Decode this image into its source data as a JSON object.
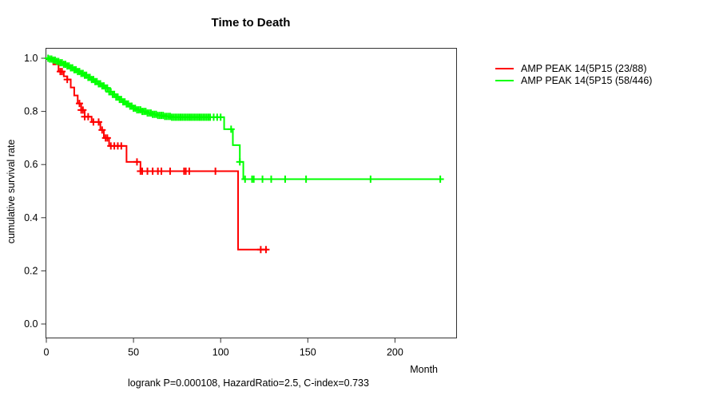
{
  "chart_data": {
    "type": "line",
    "subtype": "kaplan-meier-step",
    "title": "Time to Death",
    "xlabel": "Month",
    "ylabel": "cumulative survival rate",
    "annotation": "logrank P=0.000108, HazardRatio=2.5, C-index=0.733",
    "xlim": [
      0,
      235
    ],
    "ylim": [
      0.0,
      1.0
    ],
    "x_ticks": [
      0,
      50,
      100,
      150,
      200
    ],
    "y_ticks": [
      0.0,
      0.2,
      0.4,
      0.6,
      0.8,
      1.0
    ],
    "grid": false,
    "legend_position": "right-outside",
    "series": [
      {
        "id": "red",
        "name": "AMP PEAK 14(5P15 (23/88)",
        "color": "#ff0000",
        "end_month": 127,
        "steps": [
          [
            0,
            1.0
          ],
          [
            4,
            0.977
          ],
          [
            7,
            0.95
          ],
          [
            10,
            0.932
          ],
          [
            12,
            0.92
          ],
          [
            14,
            0.89
          ],
          [
            16,
            0.86
          ],
          [
            18,
            0.83
          ],
          [
            20,
            0.805
          ],
          [
            22,
            0.78
          ],
          [
            26,
            0.76
          ],
          [
            31,
            0.73
          ],
          [
            33,
            0.7
          ],
          [
            36,
            0.67
          ],
          [
            46,
            0.61
          ],
          [
            54,
            0.575
          ],
          [
            110,
            0.28
          ]
        ],
        "censor_months": [
          8,
          9,
          12,
          19,
          20,
          21,
          22,
          24,
          27,
          30,
          32,
          34,
          35,
          37,
          39,
          41,
          43,
          52,
          54,
          55,
          58,
          61,
          64,
          66,
          71,
          79,
          80,
          82,
          97,
          123,
          126
        ]
      },
      {
        "id": "green",
        "name": "AMP PEAK 14(5P15 (58/446)",
        "color": "#00ff00",
        "end_month": 226,
        "steps": [
          [
            0,
            1.0
          ],
          [
            2,
            0.997
          ],
          [
            4,
            0.993
          ],
          [
            6,
            0.988
          ],
          [
            8,
            0.983
          ],
          [
            10,
            0.977
          ],
          [
            12,
            0.971
          ],
          [
            14,
            0.964
          ],
          [
            16,
            0.957
          ],
          [
            18,
            0.95
          ],
          [
            20,
            0.943
          ],
          [
            22,
            0.936
          ],
          [
            24,
            0.928
          ],
          [
            26,
            0.92
          ],
          [
            28,
            0.912
          ],
          [
            30,
            0.904
          ],
          [
            32,
            0.896
          ],
          [
            34,
            0.888
          ],
          [
            36,
            0.874
          ],
          [
            38,
            0.864
          ],
          [
            40,
            0.854
          ],
          [
            42,
            0.845
          ],
          [
            44,
            0.836
          ],
          [
            46,
            0.828
          ],
          [
            48,
            0.82
          ],
          [
            50,
            0.812
          ],
          [
            52,
            0.806
          ],
          [
            55,
            0.8
          ],
          [
            58,
            0.794
          ],
          [
            61,
            0.789
          ],
          [
            64,
            0.785
          ],
          [
            68,
            0.781
          ],
          [
            72,
            0.778
          ],
          [
            102,
            0.733
          ],
          [
            107,
            0.673
          ],
          [
            111,
            0.61
          ],
          [
            113,
            0.545
          ]
        ],
        "censor_months": [
          1,
          2,
          3,
          4,
          5,
          6,
          7,
          8,
          9,
          10,
          11,
          12,
          13,
          14,
          15,
          16,
          17,
          18,
          19,
          20,
          21,
          22,
          23,
          24,
          25,
          26,
          27,
          28,
          29,
          30,
          31,
          32,
          33,
          34,
          35,
          36,
          37,
          38,
          39,
          40,
          41,
          42,
          43,
          44,
          45,
          46,
          47,
          48,
          49,
          50,
          51,
          52,
          53,
          54,
          55,
          56,
          57,
          58,
          59,
          60,
          61,
          62,
          63,
          64,
          65,
          66,
          67,
          68,
          69,
          70,
          71,
          72,
          73,
          74,
          75,
          76,
          77,
          78,
          79,
          80,
          81,
          82,
          83,
          84,
          85,
          86,
          87,
          88,
          89,
          90,
          91,
          92,
          93,
          94,
          96,
          98,
          100,
          106,
          111,
          114,
          118,
          119,
          124,
          129,
          137,
          149,
          186,
          226
        ]
      }
    ]
  }
}
